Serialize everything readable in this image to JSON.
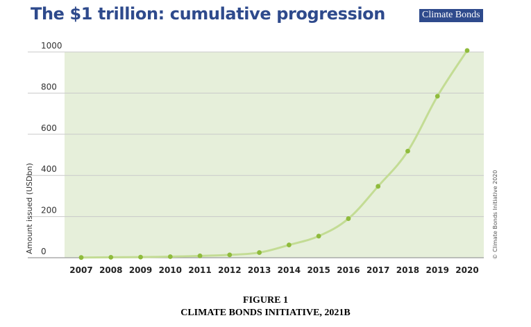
{
  "header": {
    "title": "The $1 trillion: cumulative progression",
    "logo_text": "Climate Bonds"
  },
  "copyright": "© Climate Bonds Initiative 2020",
  "caption": {
    "line1": "FIGURE 1",
    "line2": "CLIMATE BONDS INITIATIVE, 2021B"
  },
  "colors": {
    "title": "#2e4a8c",
    "plot_background": "#e6efda",
    "line": "#c3dc94",
    "marker": "#8fbb3c",
    "grid": "#c9c9c9"
  },
  "chart_data": {
    "type": "line",
    "title": "The $1 trillion: cumulative progression",
    "xlabel": "",
    "ylabel": "Amount issued (USDbn)",
    "categories": [
      "2007",
      "2008",
      "2009",
      "2010",
      "2011",
      "2012",
      "2013",
      "2014",
      "2015",
      "2016",
      "2017",
      "2018",
      "2019",
      "2020"
    ],
    "values": [
      1,
      2,
      3,
      5,
      9,
      14,
      25,
      62,
      105,
      190,
      347,
      518,
      785,
      1007
    ],
    "ylim": [
      0,
      1000
    ],
    "yticks": [
      0,
      200,
      400,
      600,
      800,
      1000
    ],
    "grid": true,
    "legend": "none"
  }
}
